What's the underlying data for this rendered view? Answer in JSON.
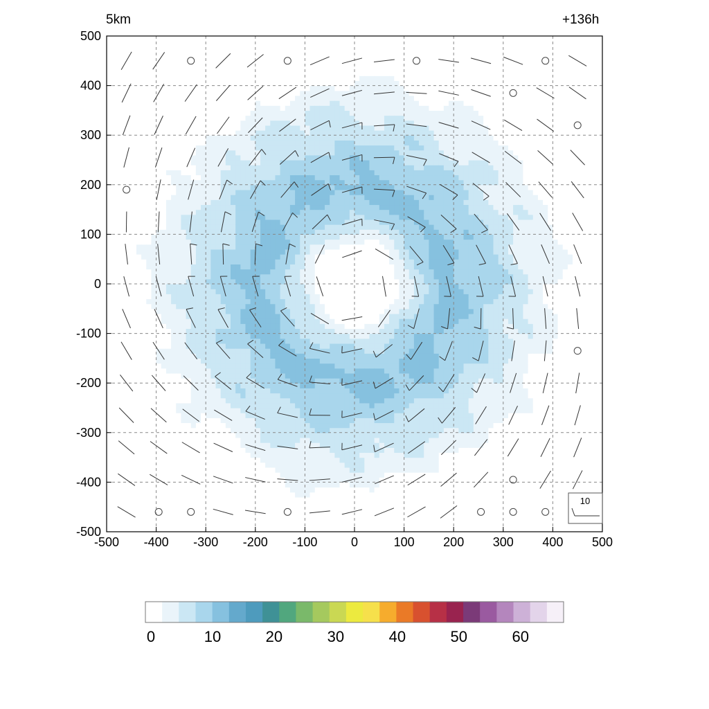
{
  "labels": {
    "top_left": "5km",
    "top_right": "+136h",
    "reference_vector": "10"
  },
  "chart_data": {
    "type": "heatmap",
    "description_free": true,
    "x_ticks": [
      -500,
      -400,
      -300,
      -200,
      -100,
      0,
      100,
      200,
      300,
      400,
      500
    ],
    "y_ticks": [
      -500,
      -400,
      -300,
      -200,
      -100,
      0,
      100,
      200,
      300,
      400,
      500
    ],
    "xlim": [
      -500,
      500
    ],
    "ylim": [
      -500,
      500
    ],
    "grid": true,
    "field": {
      "center": [
        0,
        0
      ],
      "eye_radius": 70,
      "peak_radius": 190,
      "peak_value": 12,
      "outer_radius": 470
    },
    "wind_barbs": {
      "spacing": 65,
      "reference_speed": 10,
      "calm_points": [
        [
          -330,
          450
        ],
        [
          -135,
          450
        ],
        [
          125,
          450
        ],
        [
          385,
          450
        ],
        [
          320,
          385
        ],
        [
          450,
          320
        ],
        [
          -460,
          190
        ],
        [
          450,
          -135
        ],
        [
          320,
          -395
        ],
        [
          -395,
          -460
        ],
        [
          -330,
          -460
        ],
        [
          -135,
          -460
        ],
        [
          255,
          -460
        ],
        [
          320,
          -460
        ],
        [
          385,
          -460
        ]
      ]
    },
    "colorbar": {
      "ticks": [
        0,
        10,
        20,
        30,
        40,
        50,
        60
      ],
      "min": 0,
      "max": 67,
      "colors": [
        "#ffffff",
        "#eaf4fa",
        "#cbe7f4",
        "#a9d6ec",
        "#86c1df",
        "#64a9cc",
        "#4e9bbd",
        "#3f9196",
        "#51a77e",
        "#7ab96a",
        "#a5c95e",
        "#cad853",
        "#ecea3f",
        "#f6e04b",
        "#f6ac2d",
        "#ea7a27",
        "#d8512f",
        "#b73046",
        "#99234f",
        "#7b3a78",
        "#9a5aa0",
        "#b486bd",
        "#cdb1d7",
        "#e3d4ea",
        "#f6f0f8"
      ]
    }
  }
}
